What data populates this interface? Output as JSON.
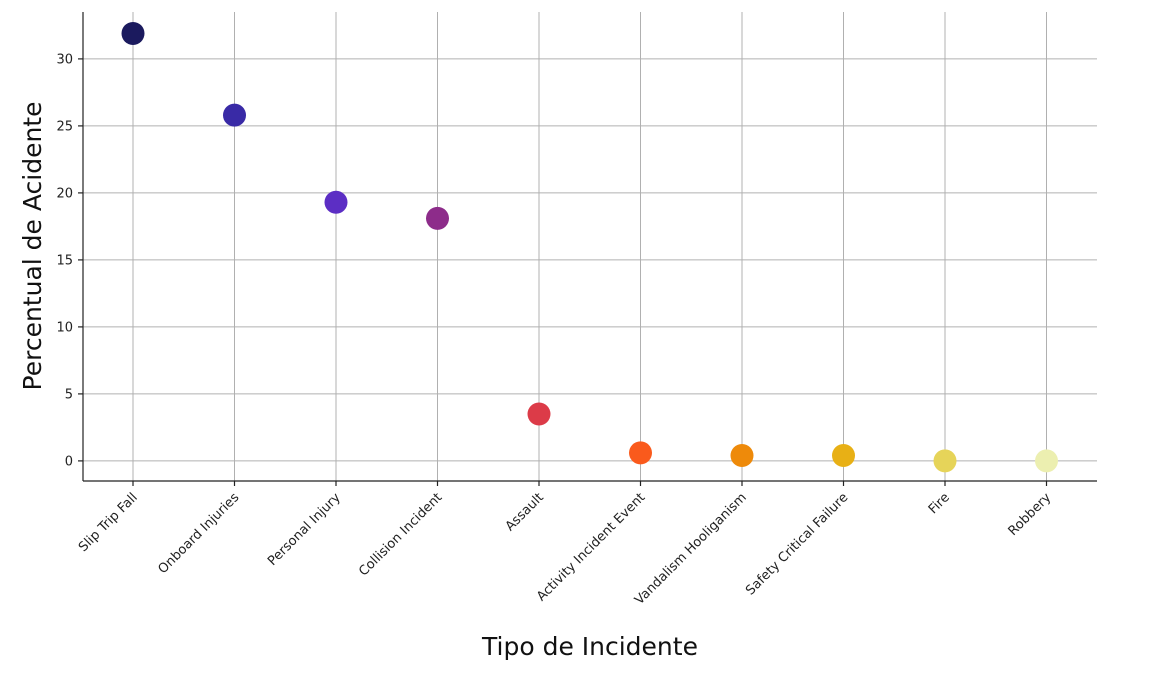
{
  "chart_data": {
    "type": "scatter",
    "title": "",
    "xlabel": "Tipo de Incidente",
    "ylabel": "Percentual de Acidente",
    "ylim": [
      -1.5,
      33.5
    ],
    "yticks": [
      0,
      5,
      10,
      15,
      20,
      25,
      30
    ],
    "grid": true,
    "legend": "none",
    "categories": [
      "Slip Trip Fall",
      "Onboard Injuries",
      "Personal Injury",
      "Collision Incident",
      "Assault",
      "Activity Incident Event",
      "Vandalism Hooliganism",
      "Safety Critical Failure",
      "Fire",
      "Robbery"
    ],
    "values": [
      31.9,
      25.8,
      19.3,
      18.1,
      3.5,
      0.6,
      0.4,
      0.4,
      0.0,
      0.0
    ],
    "colors": [
      "#1b1a5e",
      "#392aa6",
      "#5c2ec4",
      "#8d2c8a",
      "#dc3b48",
      "#fa5a1c",
      "#ee8a0a",
      "#e8b015",
      "#e6d459",
      "#ecefb0"
    ]
  }
}
